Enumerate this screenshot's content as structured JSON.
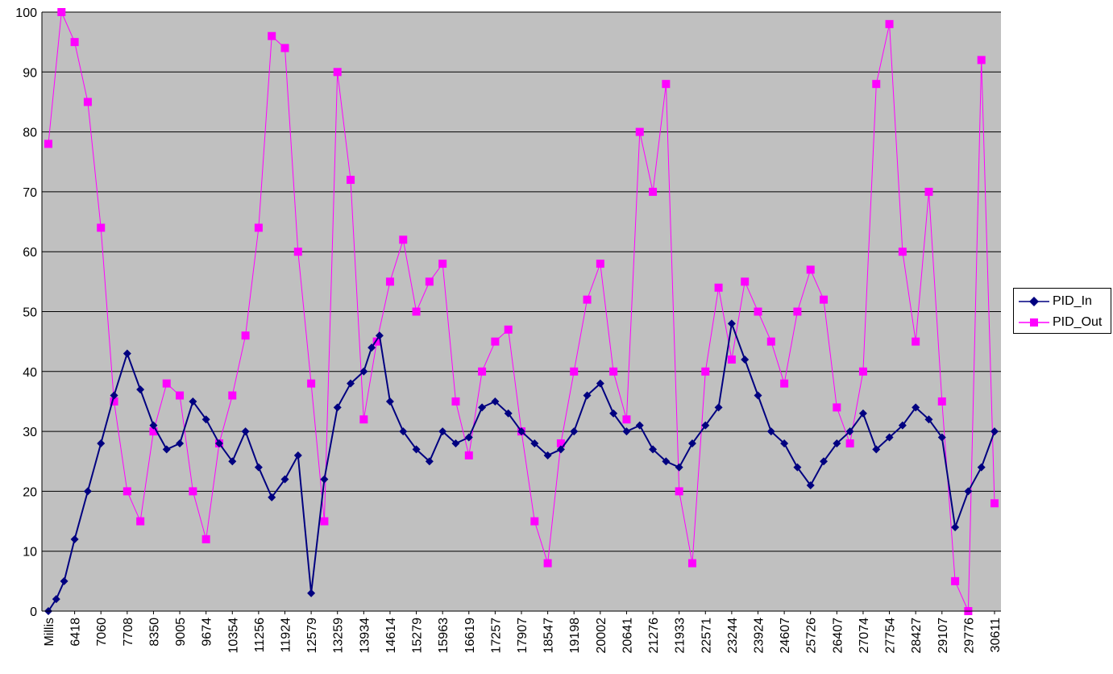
{
  "chart_data": {
    "type": "line",
    "title": "",
    "xlabel": "",
    "ylabel": "",
    "ylim": [
      0,
      100
    ],
    "y_ticks": [
      "0",
      "10",
      "20",
      "30",
      "40",
      "50",
      "60",
      "70",
      "80",
      "90",
      "100"
    ],
    "x_tick_labels": [
      "Millis",
      "6418",
      "7060",
      "7708",
      "8350",
      "9005",
      "9674",
      "10354",
      "11256",
      "11924",
      "12579",
      "13259",
      "13934",
      "14614",
      "15279",
      "15963",
      "16619",
      "17257",
      "17907",
      "18547",
      "19198",
      "20002",
      "20641",
      "21276",
      "21933",
      "22571",
      "23244",
      "23924",
      "24607",
      "25726",
      "26407",
      "27074",
      "27754",
      "28427",
      "29107",
      "29776",
      "30611"
    ],
    "plot_background": "#c0c0c0",
    "grid": true,
    "legend_position": "right",
    "series": [
      {
        "name": "PID_In",
        "color": "#000080",
        "marker": "diamond",
        "x": [
          0,
          0.3,
          0.6,
          1,
          1.5,
          2,
          2.5,
          3,
          3.5,
          4,
          4.5,
          5,
          5.5,
          6,
          6.5,
          7,
          7.5,
          8,
          8.5,
          9,
          9.5,
          10,
          10.5,
          11,
          11.5,
          12,
          12.3,
          12.6,
          13,
          13.5,
          14,
          14.5,
          15,
          15.5,
          16,
          16.5,
          17,
          17.5,
          18,
          18.5,
          19,
          19.5,
          20,
          20.5,
          21,
          21.5,
          22,
          22.5,
          23,
          23.5,
          24,
          24.5,
          25,
          25.5,
          26,
          26.5,
          27,
          27.5,
          28,
          28.5,
          29,
          29.5,
          30,
          30.5,
          31,
          31.5,
          32,
          32.5,
          33,
          33.5,
          34,
          34.5,
          35,
          35.5,
          36
        ],
        "values": [
          0,
          2,
          5,
          12,
          20,
          28,
          36,
          43,
          37,
          31,
          27,
          28,
          35,
          32,
          28,
          25,
          30,
          24,
          19,
          22,
          26,
          3,
          22,
          34,
          38,
          40,
          44,
          46,
          35,
          30,
          27,
          25,
          30,
          28,
          29,
          34,
          35,
          33,
          30,
          28,
          26,
          27,
          30,
          36,
          38,
          33,
          30,
          31,
          27,
          25,
          24,
          28,
          31,
          34,
          48,
          42,
          36,
          30,
          28,
          24,
          21,
          25,
          28,
          30,
          33,
          27,
          29,
          31,
          34,
          32,
          29,
          14,
          20,
          24,
          30
        ]
      },
      {
        "name": "PID_Out",
        "color": "#ff00ff",
        "marker": "square",
        "x": [
          0,
          0.5,
          1,
          1.5,
          2,
          2.5,
          3,
          3.5,
          4,
          4.5,
          5,
          5.5,
          6,
          6.5,
          7,
          7.5,
          8,
          8.5,
          9,
          9.5,
          10,
          10.5,
          11,
          11.5,
          12,
          12.5,
          13,
          13.5,
          14,
          14.5,
          15,
          15.5,
          16,
          16.5,
          17,
          17.5,
          18,
          18.5,
          19,
          19.5,
          20,
          20.5,
          21,
          21.5,
          22,
          22.5,
          23,
          23.5,
          24,
          24.5,
          25,
          25.5,
          26,
          26.5,
          27,
          27.5,
          28,
          28.5,
          29,
          29.5,
          30,
          30.5,
          31,
          31.5,
          32,
          32.5,
          33,
          33.5,
          34,
          34.5,
          35,
          35.5,
          36
        ],
        "values": [
          78,
          100,
          95,
          85,
          64,
          35,
          20,
          15,
          30,
          38,
          36,
          20,
          12,
          28,
          36,
          46,
          64,
          96,
          94,
          60,
          38,
          15,
          90,
          72,
          32,
          45,
          55,
          62,
          50,
          55,
          58,
          35,
          26,
          40,
          45,
          47,
          30,
          15,
          8,
          28,
          40,
          52,
          58,
          40,
          32,
          80,
          70,
          88,
          20,
          8,
          40,
          54,
          42,
          55,
          50,
          45,
          38,
          50,
          57,
          52,
          34,
          28,
          40,
          88,
          98,
          60,
          45,
          70,
          35,
          5,
          0,
          92,
          18
        ]
      }
    ]
  },
  "legend": {
    "items": [
      {
        "label": "PID_In",
        "color": "#000080",
        "marker": "diamond"
      },
      {
        "label": "PID_Out",
        "color": "#ff00ff",
        "marker": "square"
      }
    ]
  }
}
